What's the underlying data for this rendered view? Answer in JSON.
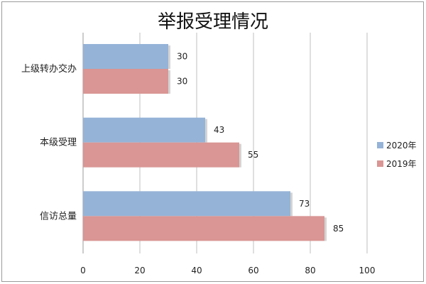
{
  "chart_data": {
    "type": "bar",
    "orientation": "horizontal",
    "title": "举报受理情况",
    "categories": [
      "上级转办交办",
      "本级受理",
      "信访总量"
    ],
    "series": [
      {
        "name": "2020年",
        "values": [
          30,
          43,
          73
        ],
        "color": "#95b3d7"
      },
      {
        "name": "2019年",
        "values": [
          30,
          55,
          85
        ],
        "color": "#d99694"
      }
    ],
    "xlim": [
      0,
      100
    ],
    "xticks": [
      0,
      20,
      40,
      60,
      80,
      100
    ],
    "grid": "vertical",
    "legend": "right"
  }
}
